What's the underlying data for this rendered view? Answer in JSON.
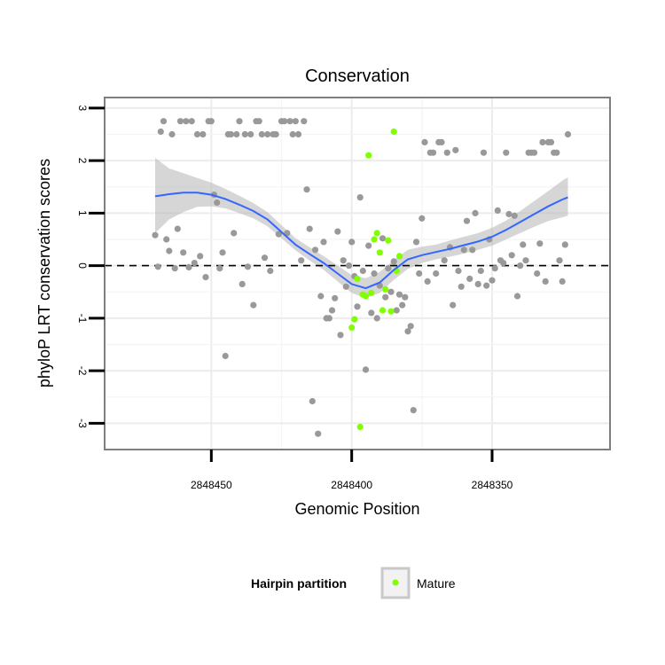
{
  "chart_data": {
    "type": "scatter",
    "title": "Conservation",
    "xlabel": "Genomic Position",
    "ylabel": "phyloP LRT conservation scores",
    "xlim": [
      2848488,
      2848308
    ],
    "ylim": [
      -3.5,
      3.2
    ],
    "x_reversed": true,
    "grid": true,
    "x_ticks": [
      2848450,
      2848400,
      2848350
    ],
    "y_ticks": [
      -3,
      -2,
      -1,
      0,
      1,
      2,
      3
    ],
    "reference_line": {
      "y": 0,
      "style": "dashed"
    },
    "legend": {
      "title": "Hairpin partition",
      "entries": [
        "Mature"
      ],
      "placement": "bottom"
    },
    "colors": {
      "other": "#999999",
      "mature": "#7fff00",
      "smooth": "#3366ff",
      "ribbon": "#bbbbbb",
      "grid": "#ececec"
    },
    "series": [
      {
        "name": "",
        "color": "#999999",
        "points": [
          [
            2848470,
            0.58
          ],
          [
            2848469,
            -0.02
          ],
          [
            2848468,
            2.55
          ],
          [
            2848467,
            2.75
          ],
          [
            2848466,
            0.5
          ],
          [
            2848465,
            0.28
          ],
          [
            2848464,
            2.5
          ],
          [
            2848463,
            -0.05
          ],
          [
            2848462,
            0.7
          ],
          [
            2848461,
            2.75
          ],
          [
            2848460,
            0.25
          ],
          [
            2848459,
            2.75
          ],
          [
            2848458,
            -0.03
          ],
          [
            2848457,
            2.75
          ],
          [
            2848456,
            0.05
          ],
          [
            2848455,
            2.5
          ],
          [
            2848454,
            0.18
          ],
          [
            2848453,
            2.5
          ],
          [
            2848452,
            -0.22
          ],
          [
            2848451,
            2.75
          ],
          [
            2848450,
            2.75
          ],
          [
            2848449,
            1.35
          ],
          [
            2848448,
            1.2
          ],
          [
            2848447,
            -0.05
          ],
          [
            2848446,
            0.25
          ],
          [
            2848445,
            -1.72
          ],
          [
            2848444,
            2.5
          ],
          [
            2848443,
            2.5
          ],
          [
            2848442,
            0.62
          ],
          [
            2848441,
            2.5
          ],
          [
            2848440,
            2.75
          ],
          [
            2848439,
            -0.35
          ],
          [
            2848438,
            2.5
          ],
          [
            2848437,
            -0.02
          ],
          [
            2848436,
            2.5
          ],
          [
            2848435,
            -0.75
          ],
          [
            2848434,
            2.75
          ],
          [
            2848433,
            2.75
          ],
          [
            2848432,
            2.5
          ],
          [
            2848431,
            0.15
          ],
          [
            2848430,
            2.5
          ],
          [
            2848429,
            -0.1
          ],
          [
            2848428,
            2.5
          ],
          [
            2848427,
            2.5
          ],
          [
            2848426,
            0.6
          ],
          [
            2848425,
            2.75
          ],
          [
            2848424,
            2.75
          ],
          [
            2848423,
            0.62
          ],
          [
            2848422,
            2.75
          ],
          [
            2848421,
            2.5
          ],
          [
            2848420,
            2.75
          ],
          [
            2848419,
            2.5
          ],
          [
            2848418,
            0.1
          ],
          [
            2848417,
            2.75
          ],
          [
            2848416,
            1.45
          ],
          [
            2848415,
            0.7
          ],
          [
            2848414,
            -2.58
          ],
          [
            2848413,
            0.3
          ],
          [
            2848412,
            -3.2
          ],
          [
            2848411,
            -0.58
          ],
          [
            2848410,
            0.45
          ],
          [
            2848409,
            -1.0
          ],
          [
            2848408,
            -1.0
          ],
          [
            2848407,
            -0.85
          ],
          [
            2848406,
            -0.62
          ],
          [
            2848405,
            0.65
          ],
          [
            2848404,
            -1.32
          ],
          [
            2848403,
            0.1
          ],
          [
            2848402,
            -0.4
          ],
          [
            2848401,
            0.0
          ],
          [
            2848400,
            0.45
          ],
          [
            2848399,
            -0.2
          ],
          [
            2848398,
            -0.78
          ],
          [
            2848397,
            1.3
          ],
          [
            2848396,
            -0.1
          ],
          [
            2848395,
            -1.98
          ],
          [
            2848394,
            0.38
          ],
          [
            2848393,
            -0.9
          ],
          [
            2848392,
            -0.15
          ],
          [
            2848391,
            -1.0
          ],
          [
            2848390,
            -0.38
          ],
          [
            2848389,
            0.52
          ],
          [
            2848388,
            -0.6
          ],
          [
            2848387,
            -0.05
          ],
          [
            2848386,
            -0.5
          ],
          [
            2848385,
            0.08
          ],
          [
            2848384,
            -0.85
          ],
          [
            2848383,
            -0.55
          ],
          [
            2848382,
            -0.75
          ],
          [
            2848381,
            -0.6
          ],
          [
            2848380,
            -1.25
          ],
          [
            2848379,
            -1.15
          ],
          [
            2848378,
            -2.75
          ],
          [
            2848377,
            0.45
          ],
          [
            2848376,
            -0.15
          ],
          [
            2848375,
            0.9
          ],
          [
            2848374,
            2.35
          ],
          [
            2848373,
            -0.3
          ],
          [
            2848372,
            2.15
          ],
          [
            2848371,
            2.15
          ],
          [
            2848370,
            -0.15
          ],
          [
            2848369,
            2.35
          ],
          [
            2848368,
            2.35
          ],
          [
            2848367,
            0.1
          ],
          [
            2848366,
            2.15
          ],
          [
            2848365,
            0.35
          ],
          [
            2848364,
            -0.75
          ],
          [
            2848363,
            2.2
          ],
          [
            2848362,
            -0.1
          ],
          [
            2848361,
            -0.4
          ],
          [
            2848360,
            0.3
          ],
          [
            2848359,
            0.85
          ],
          [
            2848358,
            -0.25
          ],
          [
            2848357,
            0.3
          ],
          [
            2848356,
            1.0
          ],
          [
            2848355,
            -0.35
          ],
          [
            2848354,
            -0.1
          ],
          [
            2848353,
            2.15
          ],
          [
            2848352,
            -0.38
          ],
          [
            2848351,
            0.5
          ],
          [
            2848350,
            -0.28
          ],
          [
            2848349,
            -0.05
          ],
          [
            2848348,
            1.05
          ],
          [
            2848347,
            0.1
          ],
          [
            2848346,
            0.05
          ],
          [
            2848345,
            2.15
          ],
          [
            2848344,
            0.98
          ],
          [
            2848343,
            0.2
          ],
          [
            2848342,
            0.95
          ],
          [
            2848341,
            -0.58
          ],
          [
            2848340,
            0.0
          ],
          [
            2848339,
            0.4
          ],
          [
            2848338,
            0.1
          ],
          [
            2848337,
            2.15
          ],
          [
            2848336,
            2.15
          ],
          [
            2848335,
            2.15
          ],
          [
            2848334,
            -0.15
          ],
          [
            2848333,
            0.42
          ],
          [
            2848332,
            2.35
          ],
          [
            2848331,
            -0.3
          ],
          [
            2848330,
            2.35
          ],
          [
            2848329,
            2.35
          ],
          [
            2848328,
            2.15
          ],
          [
            2848327,
            2.15
          ],
          [
            2848326,
            0.1
          ],
          [
            2848325,
            -0.3
          ],
          [
            2848324,
            0.4
          ],
          [
            2848323,
            2.5
          ]
        ]
      },
      {
        "name": "Mature",
        "color": "#7fff00",
        "points": [
          [
            2848400,
            -1.18
          ],
          [
            2848399,
            -1.02
          ],
          [
            2848398,
            -0.25
          ],
          [
            2848397,
            -3.07
          ],
          [
            2848396,
            -0.55
          ],
          [
            2848395,
            -0.58
          ],
          [
            2848394,
            2.1
          ],
          [
            2848393,
            -0.52
          ],
          [
            2848392,
            0.5
          ],
          [
            2848391,
            0.62
          ],
          [
            2848390,
            0.25
          ],
          [
            2848389,
            -0.85
          ],
          [
            2848388,
            -0.45
          ],
          [
            2848387,
            0.48
          ],
          [
            2848386,
            -0.87
          ],
          [
            2848385,
            2.55
          ],
          [
            2848384,
            -0.1
          ],
          [
            2848383,
            0.18
          ]
        ]
      }
    ],
    "smooth": {
      "name": "",
      "x": [
        2848470,
        2848465,
        2848460,
        2848455,
        2848450,
        2848445,
        2848440,
        2848435,
        2848430,
        2848425,
        2848420,
        2848415,
        2848410,
        2848405,
        2848400,
        2848395,
        2848390,
        2848385,
        2848380,
        2848375,
        2848370,
        2848365,
        2848360,
        2848355,
        2848350,
        2848345,
        2848340,
        2848335,
        2848330,
        2848325,
        2848323
      ],
      "y": [
        1.32,
        1.36,
        1.39,
        1.39,
        1.35,
        1.27,
        1.16,
        1.04,
        0.88,
        0.64,
        0.4,
        0.22,
        0.05,
        -0.15,
        -0.35,
        -0.43,
        -0.32,
        -0.08,
        0.12,
        0.2,
        0.26,
        0.32,
        0.39,
        0.46,
        0.55,
        0.68,
        0.83,
        0.98,
        1.13,
        1.26,
        1.3
      ],
      "lower": [
        0.62,
        0.88,
        1.02,
        1.12,
        1.13,
        1.09,
        1.0,
        0.9,
        0.75,
        0.52,
        0.29,
        0.1,
        -0.08,
        -0.3,
        -0.52,
        -0.62,
        -0.52,
        -0.27,
        -0.06,
        0.05,
        0.12,
        0.17,
        0.23,
        0.3,
        0.38,
        0.5,
        0.62,
        0.74,
        0.85,
        0.92,
        0.95
      ],
      "upper": [
        2.05,
        1.85,
        1.76,
        1.67,
        1.58,
        1.46,
        1.33,
        1.19,
        1.02,
        0.77,
        0.52,
        0.35,
        0.18,
        0.0,
        -0.18,
        -0.24,
        -0.12,
        0.11,
        0.3,
        0.36,
        0.4,
        0.48,
        0.55,
        0.62,
        0.72,
        0.86,
        1.04,
        1.23,
        1.42,
        1.62,
        1.68
      ]
    }
  }
}
